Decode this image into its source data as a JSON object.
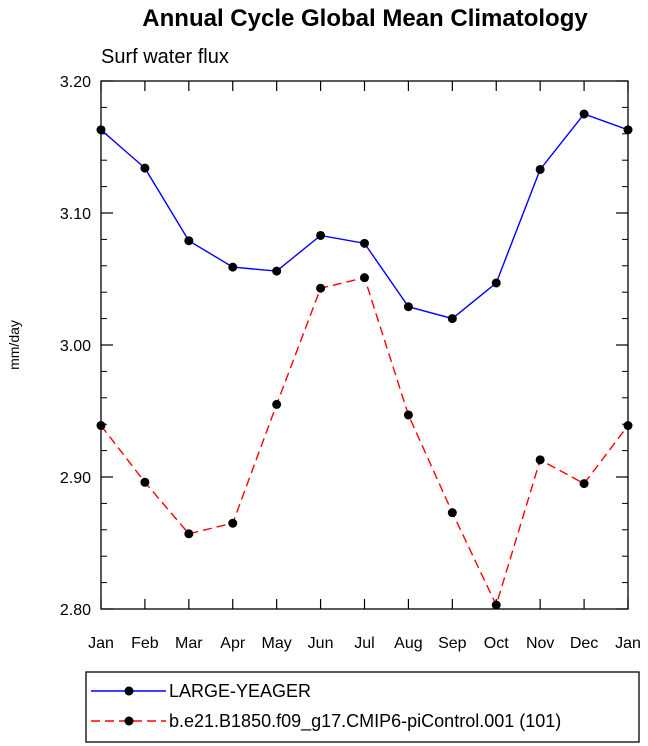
{
  "chart_data": {
    "type": "line",
    "title": "Annual Cycle Global Mean Climatology",
    "subtitle": "Surf water flux",
    "xlabel": "",
    "ylabel": "mm/day",
    "categories": [
      "Jan",
      "Feb",
      "Mar",
      "Apr",
      "May",
      "Jun",
      "Jul",
      "Aug",
      "Sep",
      "Oct",
      "Nov",
      "Dec",
      "Jan"
    ],
    "ylim": [
      2.8,
      3.2
    ],
    "yticks": [
      "2.80",
      "2.90",
      "3.00",
      "3.10",
      "3.20"
    ],
    "grid": false,
    "legend_position": "bottom",
    "series": [
      {
        "name": "LARGE-YEAGER",
        "color": "#0000ff",
        "dash": "solid",
        "marker": "filled-circle",
        "values": [
          3.163,
          3.134,
          3.079,
          3.059,
          3.056,
          3.083,
          3.077,
          3.029,
          3.02,
          3.047,
          3.133,
          3.175,
          3.163
        ]
      },
      {
        "name": "b.e21.B1850.f09_g17.CMIP6-piControl.001 (101)",
        "color": "#ff0000",
        "dash": "dashed",
        "marker": "filled-circle",
        "values": [
          2.939,
          2.896,
          2.857,
          2.865,
          2.955,
          3.043,
          3.051,
          2.947,
          2.873,
          2.803,
          2.913,
          2.895,
          2.939
        ]
      }
    ]
  }
}
